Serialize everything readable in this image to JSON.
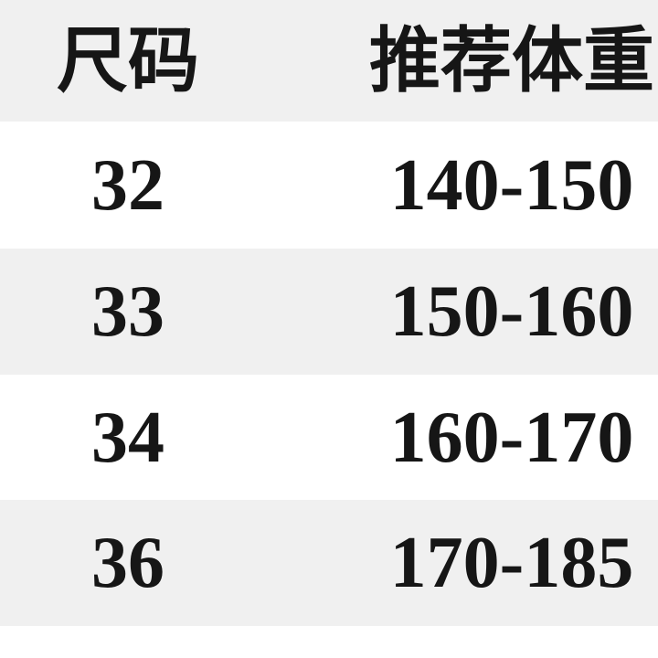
{
  "chart_data": {
    "type": "table",
    "title": "",
    "columns": [
      "尺码",
      "推荐体重"
    ],
    "rows": [
      [
        "32",
        "140-150"
      ],
      [
        "33",
        "150-160"
      ],
      [
        "34",
        "160-170"
      ],
      [
        "36",
        "170-185"
      ]
    ],
    "layout_hints": {
      "row_striping": "alternating gray and white bands, header gray",
      "column_alignment": "center"
    }
  },
  "colors": {
    "stripe_bg": "#f0f0f0",
    "row_bg": "#ffffff",
    "text": "#161616"
  }
}
